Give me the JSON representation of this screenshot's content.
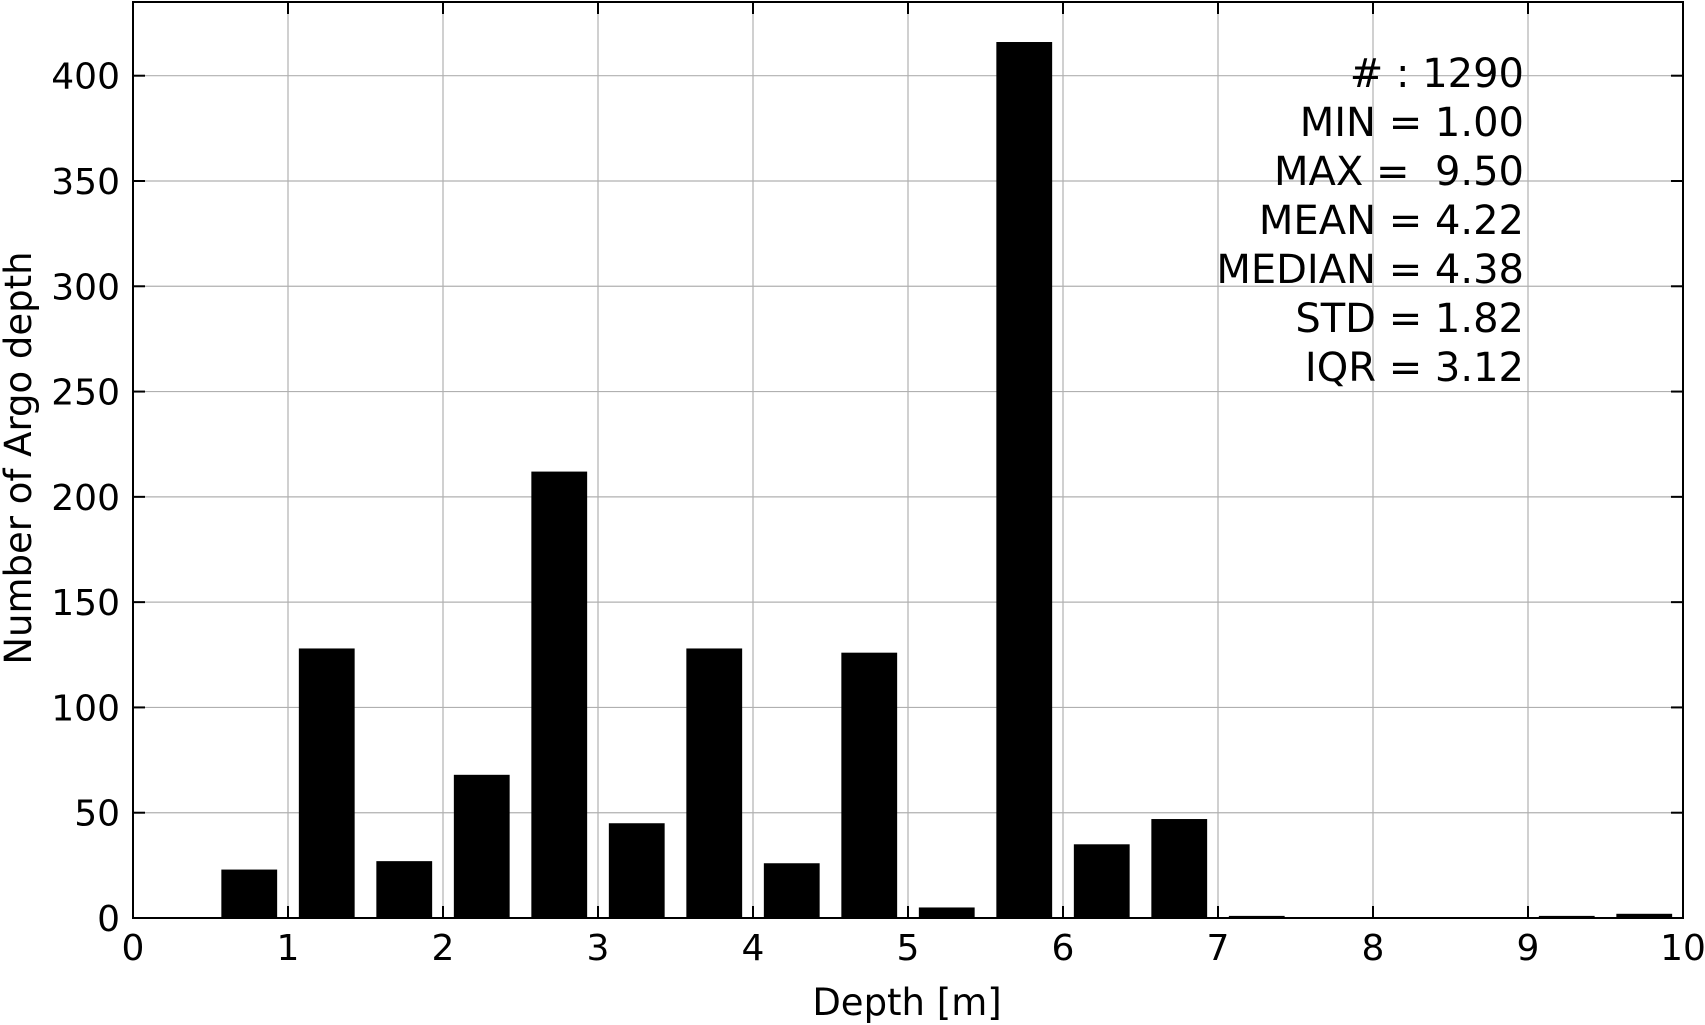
{
  "chart_data": {
    "type": "bar",
    "xlabel": "Depth [m]",
    "ylabel": "Number of Argo depth",
    "xlim": [
      0,
      10
    ],
    "ylim": [
      0,
      435
    ],
    "x_ticks": [
      "0",
      "1",
      "2",
      "3",
      "4",
      "5",
      "6",
      "7",
      "8",
      "9",
      "10"
    ],
    "y_ticks": [
      "0",
      "50",
      "100",
      "150",
      "200",
      "250",
      "300",
      "350",
      "400"
    ],
    "grid": true,
    "bar_color": "#000000",
    "bar_width": 0.36,
    "bins": [
      {
        "x": 0.75,
        "value": 23
      },
      {
        "x": 1.25,
        "value": 128
      },
      {
        "x": 1.75,
        "value": 27
      },
      {
        "x": 2.25,
        "value": 68
      },
      {
        "x": 2.75,
        "value": 212
      },
      {
        "x": 3.25,
        "value": 45
      },
      {
        "x": 3.75,
        "value": 128
      },
      {
        "x": 4.25,
        "value": 26
      },
      {
        "x": 4.75,
        "value": 126
      },
      {
        "x": 5.25,
        "value": 5
      },
      {
        "x": 5.75,
        "value": 416
      },
      {
        "x": 6.25,
        "value": 35
      },
      {
        "x": 6.75,
        "value": 47
      },
      {
        "x": 7.25,
        "value": 1
      },
      {
        "x": 7.75,
        "value": 0
      },
      {
        "x": 8.25,
        "value": 0
      },
      {
        "x": 8.75,
        "value": 0
      },
      {
        "x": 9.25,
        "value": 1
      },
      {
        "x": 9.75,
        "value": 2
      }
    ],
    "stats": [
      "# : 1290",
      "MIN = 1.00",
      "MAX =  9.50",
      "MEAN = 4.22",
      "MEDIAN = 4.38",
      "STD = 1.82",
      "IQR = 3.12"
    ],
    "stats_placement": "top-right"
  }
}
